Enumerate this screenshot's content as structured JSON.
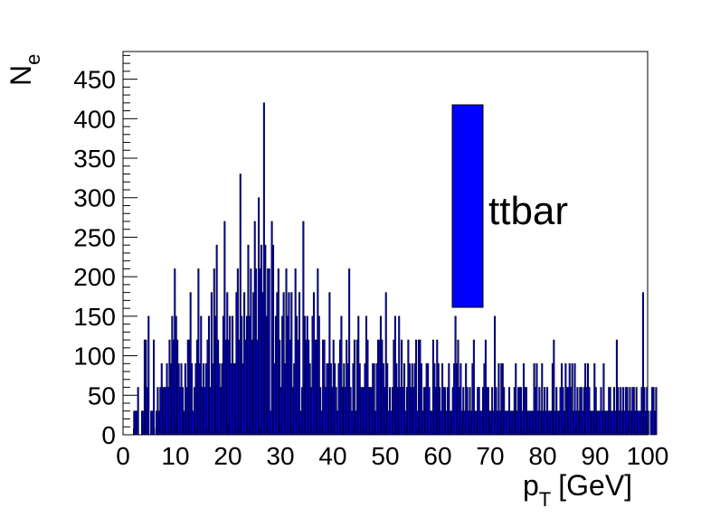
{
  "chart_data": {
    "type": "bar",
    "xlabel": "p",
    "xlabel_sub": "T",
    "xlabel_unit": "[GeV]",
    "ylabel": "N",
    "ylabel_sub": "e",
    "xlim": [
      0,
      100
    ],
    "ylim": [
      0,
      485
    ],
    "x_ticks": [
      "0",
      "10",
      "20",
      "30",
      "40",
      "50",
      "60",
      "70",
      "80",
      "90",
      "100"
    ],
    "y_ticks": [
      "0",
      "50",
      "100",
      "150",
      "200",
      "250",
      "300",
      "350",
      "400",
      "450"
    ],
    "bin_width": 0.25,
    "x_start": 0,
    "legend": [
      {
        "label": "ttbar",
        "color": "#0000ff"
      }
    ],
    "legend_position": "top-right",
    "colors": {
      "fill": "#0000ff",
      "edge": "#000000"
    },
    "series": [
      {
        "values": [
          0,
          0,
          0,
          0,
          0,
          0,
          0,
          0,
          30,
          30,
          30,
          60,
          0,
          0,
          30,
          30,
          120,
          120,
          60,
          150,
          0,
          30,
          30,
          120,
          0,
          30,
          60,
          30,
          60,
          90,
          60,
          60,
          60,
          90,
          60,
          120,
          90,
          150,
          120,
          210,
          150,
          120,
          90,
          60,
          90,
          60,
          30,
          90,
          60,
          120,
          120,
          180,
          90,
          30,
          60,
          90,
          120,
          210,
          90,
          150,
          60,
          90,
          60,
          90,
          120,
          150,
          60,
          180,
          90,
          210,
          150,
          240,
          120,
          90,
          60,
          90,
          150,
          270,
          120,
          180,
          120,
          150,
          90,
          150,
          90,
          90,
          180,
          210,
          120,
          330,
          150,
          90,
          180,
          120,
          150,
          240,
          150,
          210,
          120,
          180,
          270,
          210,
          120,
          300,
          210,
          240,
          180,
          420,
          240,
          150,
          210,
          210,
          30,
          270,
          240,
          90,
          150,
          180,
          210,
          120,
          60,
          150,
          180,
          90,
          210,
          150,
          180,
          120,
          180,
          60,
          90,
          210,
          150,
          120,
          180,
          30,
          60,
          270,
          150,
          120,
          150,
          120,
          90,
          60,
          150,
          180,
          120,
          120,
          210,
          150,
          60,
          30,
          120,
          120,
          60,
          90,
          90,
          180,
          90,
          60,
          120,
          90,
          60,
          30,
          90,
          120,
          150,
          60,
          90,
          60,
          120,
          90,
          210,
          60,
          30,
          90,
          120,
          30,
          120,
          150,
          90,
          60,
          60,
          60,
          90,
          150,
          120,
          60,
          60,
          60,
          90,
          90,
          30,
          90,
          120,
          120,
          150,
          120,
          90,
          60,
          180,
          90,
          30,
          60,
          30,
          60,
          120,
          150,
          90,
          60,
          150,
          60,
          120,
          60,
          90,
          30,
          60,
          120,
          90,
          60,
          90,
          60,
          90,
          120,
          30,
          120,
          120,
          90,
          30,
          60,
          60,
          90,
          90,
          60,
          30,
          30,
          120,
          90,
          60,
          120,
          90,
          60,
          30,
          90,
          60,
          60,
          30,
          60,
          90,
          30,
          30,
          60,
          90,
          150,
          90,
          120,
          60,
          90,
          30,
          60,
          30,
          90,
          60,
          30,
          60,
          30,
          90,
          120,
          30,
          30,
          60,
          60,
          30,
          30,
          60,
          90,
          120,
          60,
          60,
          30,
          30,
          60,
          30,
          150,
          60,
          30,
          90,
          30,
          90,
          90,
          60,
          30,
          30,
          30,
          60,
          30,
          30,
          30,
          60,
          90,
          30,
          60,
          60,
          60,
          30,
          90,
          60,
          60,
          30,
          30,
          30,
          30,
          30,
          90,
          60,
          90,
          30,
          60,
          30,
          90,
          30,
          60,
          30,
          60,
          30,
          30,
          30,
          90,
          120,
          30,
          60,
          30,
          30,
          60,
          90,
          60,
          30,
          90,
          60,
          60,
          90,
          60,
          90,
          30,
          90,
          30,
          60,
          30,
          60,
          60,
          30,
          60,
          90,
          60,
          90,
          60,
          30,
          30,
          30,
          90,
          60,
          30,
          30,
          30,
          60,
          30,
          90,
          30,
          30,
          30,
          60,
          60,
          30,
          30,
          60,
          30,
          120,
          60,
          30,
          60,
          30,
          60,
          30,
          60,
          60,
          30,
          60,
          30,
          60,
          60,
          30,
          60,
          30,
          30,
          30,
          60,
          180,
          60,
          30,
          60,
          30,
          0,
          30,
          60,
          60,
          30,
          60
        ]
      }
    ]
  }
}
